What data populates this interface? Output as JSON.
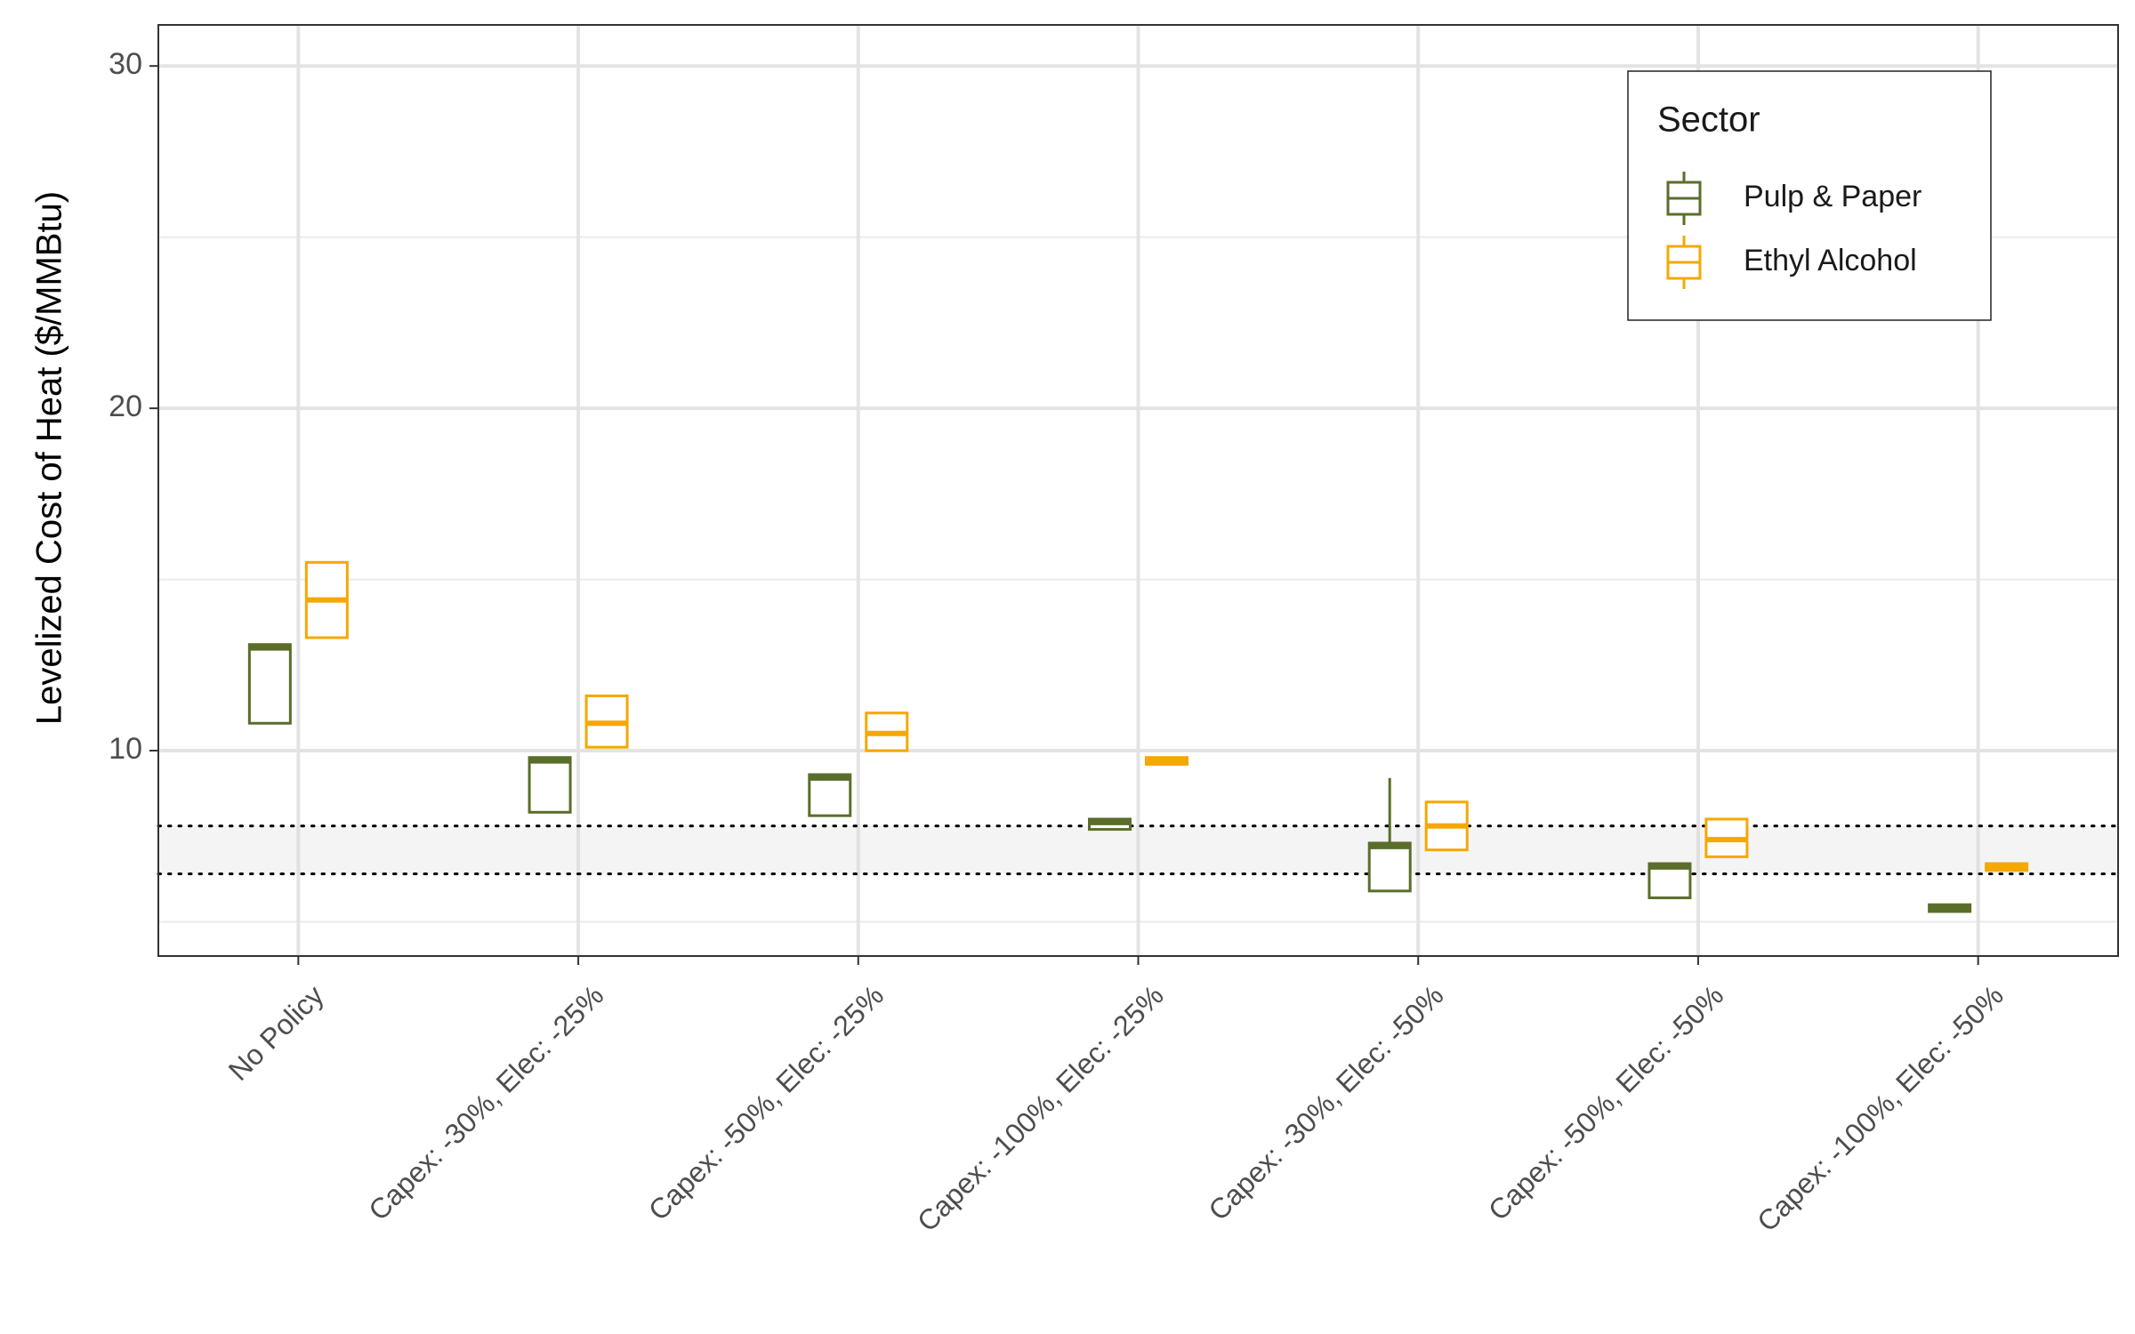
{
  "chart_data": {
    "type": "boxplot",
    "title": "",
    "xlabel": "",
    "ylabel": "Levelized Cost of Heat ($/MMBtu)",
    "ylim": [
      4.0,
      31.2
    ],
    "y_ticks": [
      10,
      20,
      30
    ],
    "grid": true,
    "categories": [
      "No Policy",
      "Capex: -30%, Elec: -25%",
      "Capex: -50%, Elec: -25%",
      "Capex: -100%, Elec: -25%",
      "Capex: -30%, Elec: -50%",
      "Capex: -50%, Elec: -50%",
      "Capex: -100%, Elec: -50%"
    ],
    "reference_band": {
      "low": 6.4,
      "high": 7.8,
      "style": "dotted lines with light gray fill"
    },
    "legend": {
      "title": "Sector",
      "position": "top-right"
    },
    "series": [
      {
        "name": "Pulp & Paper",
        "color": "#5a6e2a",
        "boxes": [
          {
            "q1": 10.8,
            "median": 13.0,
            "q3": 13.1
          },
          {
            "q1": 8.2,
            "median": 9.7,
            "q3": 9.8
          },
          {
            "q1": 8.1,
            "median": 9.2,
            "q3": 9.3
          },
          {
            "q1": 7.7,
            "median": 7.9,
            "q3": 8.0
          },
          {
            "q1": 5.9,
            "median": 7.2,
            "q3": 7.3,
            "whisker_high": 9.2
          },
          {
            "q1": 5.7,
            "median": 6.6,
            "q3": 6.7
          },
          {
            "q1": 5.3,
            "median": 5.4,
            "q3": 5.5
          }
        ]
      },
      {
        "name": "Ethyl Alcohol",
        "color": "#f5a800",
        "boxes": [
          {
            "q1": 13.3,
            "median": 14.4,
            "q3": 15.5
          },
          {
            "q1": 10.1,
            "median": 10.8,
            "q3": 11.6
          },
          {
            "q1": 10.0,
            "median": 10.5,
            "q3": 11.1
          },
          {
            "q1": 9.6,
            "median": 9.7,
            "q3": 9.8
          },
          {
            "q1": 7.1,
            "median": 7.8,
            "q3": 8.5
          },
          {
            "q1": 6.9,
            "median": 7.4,
            "q3": 8.0
          },
          {
            "q1": 6.5,
            "median": 6.6,
            "q3": 6.7
          }
        ]
      }
    ]
  }
}
